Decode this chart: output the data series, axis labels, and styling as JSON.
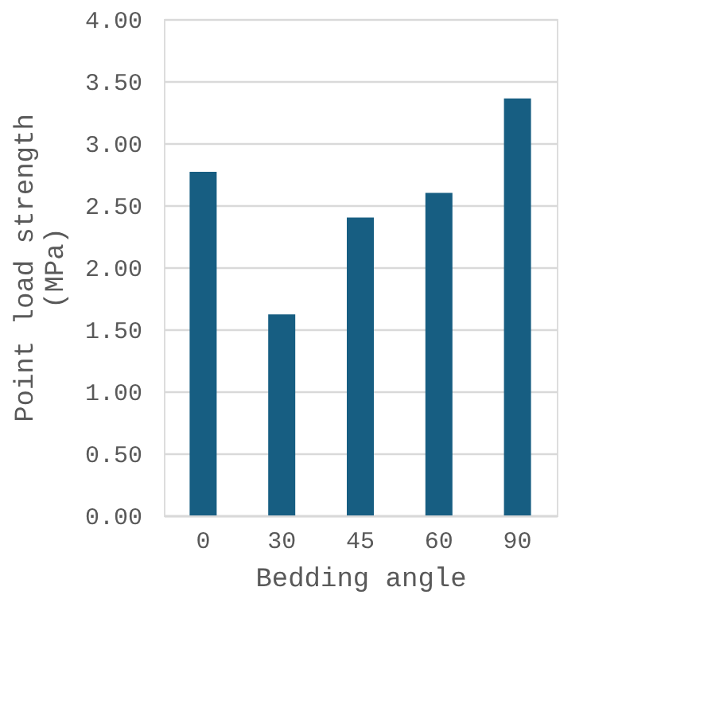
{
  "chart_data": {
    "type": "bar",
    "xlabel": "Bedding angle",
    "ylabel": "Point load strength (MPa)",
    "categories": [
      "0",
      "30",
      "45",
      "60",
      "90"
    ],
    "series": [
      {
        "color": "#175e82",
        "values": [
          2.77,
          1.62,
          2.4,
          2.6,
          3.36
        ]
      }
    ],
    "ylim": [
      0,
      4
    ],
    "yticks": [
      {
        "value": 0,
        "label": "0.00"
      },
      {
        "value": 0.5,
        "label": "0.50"
      },
      {
        "value": 1,
        "label": "1.00"
      },
      {
        "value": 1.5,
        "label": "1.50"
      },
      {
        "value": 2,
        "label": "2.00"
      },
      {
        "value": 2.5,
        "label": "2.50"
      },
      {
        "value": 3,
        "label": "3.00"
      },
      {
        "value": 3.5,
        "label": "3.50"
      },
      {
        "value": 4,
        "label": "4.00"
      }
    ],
    "grid": "y",
    "legend": false
  }
}
